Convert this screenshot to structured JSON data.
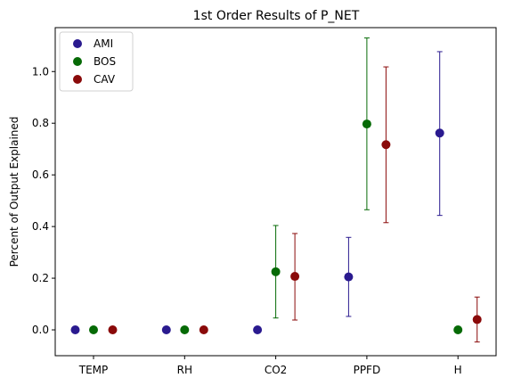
{
  "chart_data": {
    "type": "scatter",
    "title": "1st Order Results of P_NET",
    "xlabel": "",
    "ylabel": "Percent of Output Explained",
    "categories": [
      "TEMP",
      "RH",
      "CO2",
      "PPFD",
      "H"
    ],
    "ylim": [
      -0.1,
      1.17
    ],
    "yticks": [
      0.0,
      0.2,
      0.4,
      0.6,
      0.8,
      1.0
    ],
    "ytick_labels": [
      "0.0",
      "0.2",
      "0.4",
      "0.6",
      "0.8",
      "1.0"
    ],
    "grid": false,
    "legend_position": "top-left",
    "series": [
      {
        "name": "AMI",
        "color": "#2a1a8f",
        "values": [
          0.0,
          0.0,
          0.0,
          0.205,
          0.762
        ],
        "err_low": [
          null,
          null,
          null,
          0.052,
          0.443
        ],
        "err_high": [
          null,
          null,
          null,
          0.358,
          1.077
        ]
      },
      {
        "name": "BOS",
        "color": "#066a06",
        "values": [
          0.0,
          0.0,
          0.225,
          0.797,
          0.0
        ],
        "err_low": [
          null,
          null,
          0.046,
          0.465,
          null
        ],
        "err_high": [
          null,
          null,
          0.404,
          1.13,
          null
        ]
      },
      {
        "name": "CAV",
        "color": "#8a0a0a",
        "values": [
          0.0,
          0.0,
          0.207,
          0.717,
          0.04
        ],
        "err_low": [
          null,
          null,
          0.038,
          0.415,
          -0.047
        ],
        "err_high": [
          null,
          null,
          0.373,
          1.018,
          0.127
        ]
      }
    ]
  }
}
